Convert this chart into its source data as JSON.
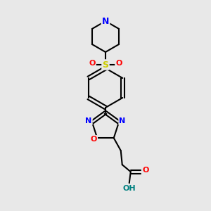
{
  "title": "",
  "background_color": "#e8e8e8",
  "bond_color": "#000000",
  "atom_colors": {
    "N": "#0000ff",
    "O": "#ff0000",
    "S": "#cccc00",
    "C": "#000000",
    "H": "#008080"
  },
  "figsize": [
    3.0,
    3.0
  ],
  "dpi": 100
}
